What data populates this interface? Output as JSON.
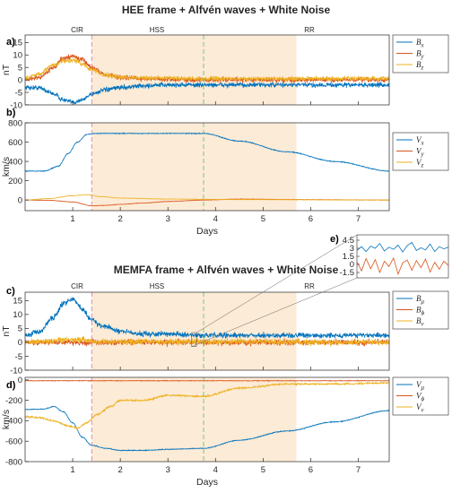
{
  "figure_titles": {
    "top": "HEE frame + Alfvén waves + White Noise",
    "bottom": "MEMFA frame + Alfvén waves + White Noise"
  },
  "region_labels": [
    "CIR",
    "HSS",
    "RR"
  ],
  "colors": {
    "blue": "#0072BD",
    "red": "#D95319",
    "yellow": "#EDB120",
    "shade": "#FCEBD6",
    "pink_line": "#D98CB3",
    "green_line": "#7BC67B"
  },
  "chart_data": [
    {
      "panel": "a)",
      "type": "line",
      "xlabel": "",
      "ylabel": "nT",
      "xlim": [
        0,
        7.65
      ],
      "ylim": [
        -10,
        18
      ],
      "x_ticks": [
        1,
        2,
        3,
        4,
        5,
        6,
        7
      ],
      "y_ticks": [
        -10,
        -5,
        0,
        5,
        10,
        15
      ],
      "x_tick_labels_shown": false,
      "grid": false,
      "shaded_region": [
        1.4,
        5.7
      ],
      "vlines": [
        1.4,
        3.75
      ],
      "legend": "right",
      "series": [
        {
          "name": "B_x",
          "color": "#0072BD",
          "noise": 0.9,
          "x": [
            0,
            0.3,
            0.6,
            0.8,
            1.0,
            1.2,
            1.4,
            1.7,
            2.0,
            2.5,
            3.0,
            3.75,
            4.5,
            5.7,
            7.65
          ],
          "y": [
            -3,
            -3.2,
            -5.5,
            -8,
            -9,
            -8,
            -5.5,
            -4,
            -3,
            -2.4,
            -2,
            -2,
            -2,
            -2,
            -2
          ]
        },
        {
          "name": "B_y",
          "color": "#D95319",
          "noise": 0.9,
          "x": [
            0,
            0.3,
            0.6,
            0.8,
            1.0,
            1.2,
            1.4,
            1.7,
            2.0,
            2.5,
            3.0,
            3.75,
            5.7,
            7.65
          ],
          "y": [
            0,
            1,
            5,
            8.5,
            9.5,
            8,
            5,
            2,
            1,
            0.5,
            0.2,
            0,
            0,
            0
          ]
        },
        {
          "name": "B_z",
          "color": "#EDB120",
          "noise": 0.8,
          "x": [
            0,
            0.3,
            0.6,
            0.8,
            1.0,
            1.2,
            1.4,
            1.7,
            2.0,
            3.75,
            7.65
          ],
          "y": [
            0.5,
            2.5,
            6,
            7.5,
            8,
            6.5,
            4,
            2,
            1,
            0.5,
            0.5
          ]
        }
      ]
    },
    {
      "panel": "b)",
      "type": "line",
      "xlabel": "Days",
      "ylabel": "km/s",
      "xlim": [
        0,
        7.65
      ],
      "ylim": [
        -110,
        800
      ],
      "x_ticks": [
        1,
        2,
        3,
        4,
        5,
        6,
        7
      ],
      "y_ticks": [
        0,
        200,
        400,
        600,
        800
      ],
      "x_tick_labels_shown": true,
      "grid": false,
      "shaded_region": [
        1.4,
        5.7
      ],
      "vlines": [
        1.4,
        3.75
      ],
      "legend": "right",
      "series": [
        {
          "name": "V_x",
          "color": "#0072BD",
          "noise": 4,
          "x": [
            0,
            0.4,
            0.7,
            0.9,
            1.1,
            1.3,
            1.5,
            2.0,
            3.0,
            3.75,
            4.5,
            5.5,
            6.5,
            7.65
          ],
          "y": [
            300,
            300,
            350,
            480,
            600,
            680,
            690,
            690,
            690,
            690,
            610,
            500,
            400,
            300
          ]
        },
        {
          "name": "V_y",
          "color": "#D95319",
          "noise": 2,
          "x": [
            0,
            0.5,
            1.0,
            1.4,
            1.7,
            2.0,
            2.5,
            3.0,
            3.75,
            4.5,
            5.7,
            7.65
          ],
          "y": [
            0,
            -3,
            -20,
            -60,
            -55,
            -45,
            -30,
            -15,
            0,
            10,
            5,
            0
          ]
        },
        {
          "name": "V_z",
          "color": "#EDB120",
          "noise": 2,
          "x": [
            0,
            0.5,
            1.0,
            1.3,
            1.6,
            2.0,
            3.0,
            4.5,
            7.65
          ],
          "y": [
            0,
            15,
            45,
            55,
            35,
            20,
            10,
            5,
            0
          ]
        }
      ]
    },
    {
      "panel": "c)",
      "type": "line",
      "xlabel": "",
      "ylabel": "nT",
      "xlim": [
        0,
        7.65
      ],
      "ylim": [
        -10,
        18
      ],
      "x_ticks": [
        1,
        2,
        3,
        4,
        5,
        6,
        7
      ],
      "y_ticks": [
        -10,
        -5,
        0,
        5,
        10,
        15
      ],
      "x_tick_labels_shown": false,
      "grid": false,
      "shaded_region": [
        1.4,
        5.7
      ],
      "vlines": [
        1.4,
        3.75
      ],
      "legend": "right",
      "series": [
        {
          "name": "B_μ",
          "color": "#0072BD",
          "noise": 0.9,
          "x": [
            0,
            0.3,
            0.6,
            0.8,
            1.0,
            1.2,
            1.4,
            1.6,
            2.0,
            2.5,
            3.0,
            3.75,
            5.7,
            7.65
          ],
          "y": [
            2.5,
            4,
            9,
            14,
            15.5,
            12,
            8,
            6,
            4,
            3,
            3,
            2.5,
            2.5,
            2.5
          ]
        },
        {
          "name": "B_ϕ",
          "color": "#D95319",
          "noise": 1.0,
          "x": [
            0,
            7.65
          ],
          "y": [
            0,
            0
          ]
        },
        {
          "name": "B_ν",
          "color": "#EDB120",
          "noise": 1.0,
          "x": [
            0,
            0.5,
            1.0,
            1.5,
            7.65
          ],
          "y": [
            0,
            0.5,
            1,
            0.3,
            0
          ]
        }
      ]
    },
    {
      "panel": "d)",
      "type": "line",
      "xlabel": "Days",
      "ylabel": "km/s",
      "xlim": [
        0,
        7.65
      ],
      "ylim": [
        -800,
        25
      ],
      "x_ticks": [
        1,
        2,
        3,
        4,
        5,
        6,
        7
      ],
      "y_ticks": [
        -800,
        -600,
        -400,
        -200,
        0
      ],
      "x_tick_labels_shown": true,
      "grid": false,
      "shaded_region": [
        1.4,
        5.7
      ],
      "vlines": [
        1.4,
        3.75
      ],
      "legend": "right",
      "series": [
        {
          "name": "V_μ",
          "color": "#0072BD",
          "noise": 4,
          "x": [
            0,
            0.4,
            0.6,
            0.8,
            1.0,
            1.2,
            1.4,
            1.7,
            2.0,
            2.5,
            3.0,
            3.75,
            4.5,
            5.5,
            6.5,
            7.65
          ],
          "y": [
            -290,
            -285,
            -260,
            -310,
            -420,
            -560,
            -640,
            -670,
            -690,
            -690,
            -680,
            -670,
            -590,
            -500,
            -410,
            -300
          ]
        },
        {
          "name": "V_ϕ",
          "color": "#D95319",
          "noise": 3,
          "x": [
            0,
            7.65
          ],
          "y": [
            -8,
            -8
          ]
        },
        {
          "name": "V_ν",
          "color": "#EDB120",
          "noise": 8,
          "x": [
            0,
            0.3,
            0.6,
            0.9,
            1.1,
            1.3,
            1.5,
            1.8,
            2.0,
            2.5,
            3.0,
            3.75,
            4.5,
            5.5,
            6.5,
            7.65
          ],
          "y": [
            -360,
            -370,
            -400,
            -450,
            -470,
            -420,
            -340,
            -260,
            -200,
            -200,
            -150,
            -160,
            -80,
            -40,
            -40,
            -30
          ]
        }
      ]
    },
    {
      "panel": "e)",
      "type": "line",
      "xlabel": "",
      "ylabel": "",
      "ylim": [
        -2.5,
        5.5
      ],
      "y_ticks": [
        -1.5,
        0,
        1.5,
        3,
        4.5
      ],
      "grid": false,
      "legend": "none",
      "series": [
        {
          "name": "",
          "color": "#0072BD",
          "x": [
            0,
            0.05,
            0.1,
            0.15,
            0.2,
            0.25,
            0.3,
            0.35,
            0.4,
            0.45,
            0.5,
            0.55,
            0.6,
            0.65,
            0.7,
            0.75,
            0.8,
            0.85,
            0.9,
            0.95,
            1.0
          ],
          "y": [
            2.6,
            3.3,
            2.4,
            3.4,
            3.0,
            3.9,
            2.5,
            3.2,
            2.8,
            3.6,
            2.3,
            3.5,
            4.1,
            2.6,
            3.1,
            2.7,
            3.8,
            2.4,
            3.3,
            2.9,
            3.2
          ]
        },
        {
          "name": "",
          "color": "#D95319",
          "x": [
            0,
            0.05,
            0.1,
            0.15,
            0.2,
            0.25,
            0.3,
            0.35,
            0.4,
            0.45,
            0.5,
            0.55,
            0.6,
            0.65,
            0.7,
            0.75,
            0.8,
            0.85,
            0.9,
            0.95,
            1.0
          ],
          "y": [
            0.5,
            -1.2,
            1.1,
            -0.8,
            0.9,
            -1.5,
            0.6,
            -0.4,
            1.2,
            -1.8,
            0.3,
            0.8,
            -1.1,
            0.7,
            -0.6,
            1.0,
            -1.4,
            0.4,
            -0.9,
            0.6,
            -0.2
          ]
        }
      ]
    }
  ]
}
